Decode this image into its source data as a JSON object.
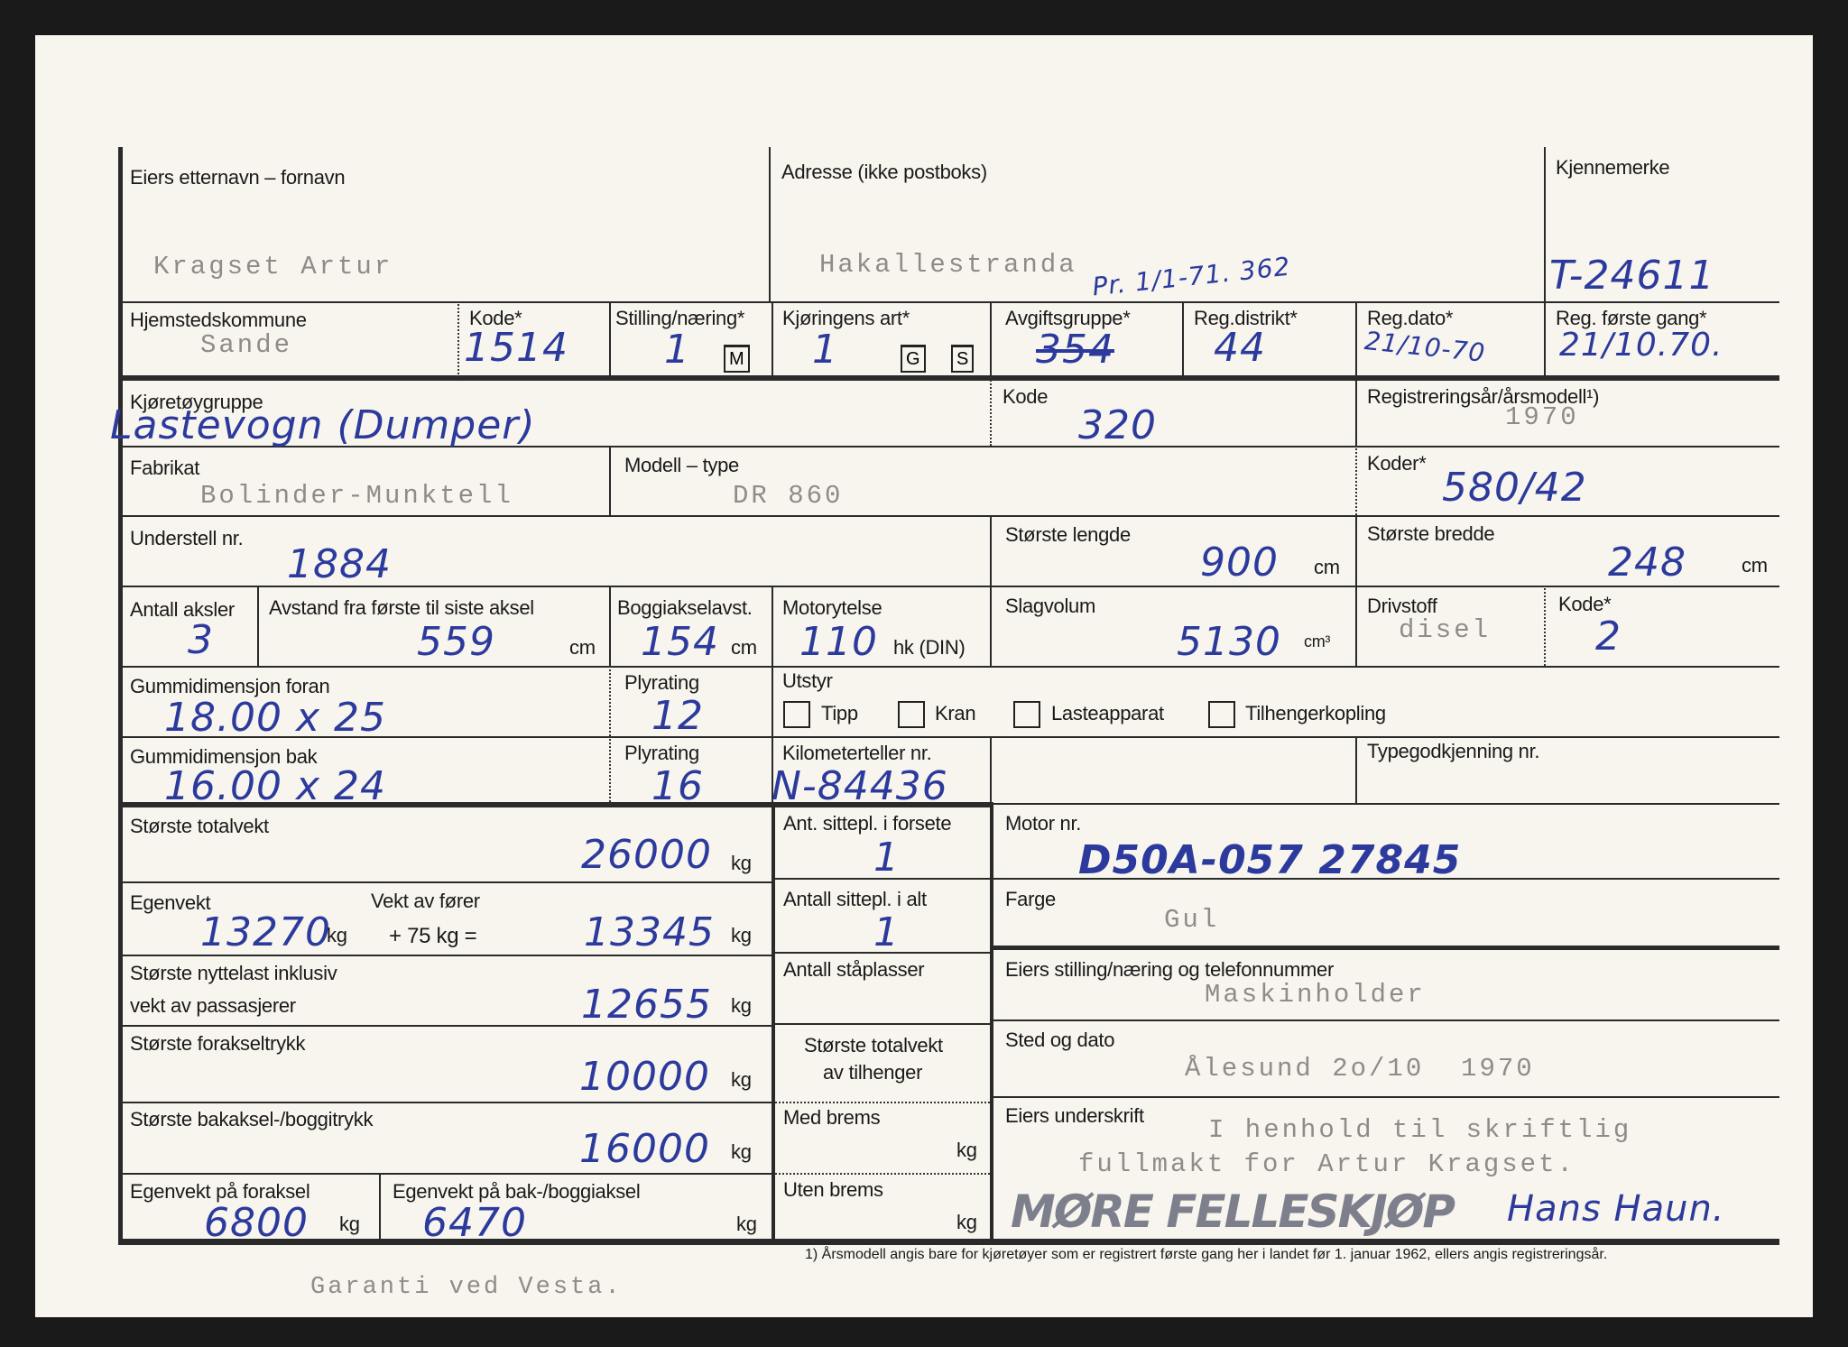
{
  "row1": {
    "owner_label": "Eiers etternavn – fornavn",
    "owner_value": "Kragset Artur",
    "address_label": "Adresse (ikke postboks)",
    "address_value": "Hakallestranda",
    "address_note": "Pr. 1/1-71. 362",
    "plate_label": "Kjennemerke",
    "plate_value": "T-24611"
  },
  "row2": {
    "municipality_label": "Hjemstedskommune",
    "municipality_value": "Sande",
    "code_label": "Kode*",
    "code_value": "1514",
    "occupation_label": "Stilling/næring*",
    "occupation_value": "1",
    "occupation_box": "M",
    "driving_label": "Kjøringens art*",
    "driving_value": "1",
    "driving_box_g": "G",
    "driving_box_s": "S",
    "fee_label": "Avgiftsgruppe*",
    "fee_value": "354",
    "district_label": "Reg.distrikt*",
    "district_value": "44",
    "regdate_label": "Reg.dato*",
    "regdate_value": "21/10-70",
    "firstreg_label": "Reg. første gang*",
    "firstreg_value": "21/10.70."
  },
  "row3": {
    "group_label": "Kjøretøygruppe",
    "group_value": "Lastevogn (Dumper)",
    "code_label": "Kode",
    "code_value": "320",
    "year_label": "Registreringsår/årsmodell¹)",
    "year_value": "1970"
  },
  "row4": {
    "make_label": "Fabrikat",
    "make_value": "Bolinder-Munktell",
    "model_label": "Modell – type",
    "model_value": "DR 860",
    "codes_label": "Koder*",
    "codes_value": "580/42"
  },
  "row5": {
    "chassis_label": "Understell nr.",
    "chassis_value": "1884",
    "length_label": "Største lengde",
    "length_value": "900",
    "length_unit": "cm",
    "width_label": "Største bredde",
    "width_value": "248",
    "width_unit": "cm"
  },
  "row6": {
    "axles_label": "Antall aksler",
    "axles_value": "3",
    "axle_dist_label": "Avstand fra første til siste aksel",
    "axle_dist_value": "559",
    "axle_dist_unit": "cm",
    "bogie_label": "Boggiakselavst.",
    "bogie_value": "154",
    "bogie_unit": "cm",
    "power_label": "Motorytelse",
    "power_value": "110",
    "power_unit": "hk (DIN)",
    "displacement_label": "Slagvolum",
    "displacement_value": "5130",
    "displacement_unit": "cm³",
    "fuel_label": "Drivstoff",
    "fuel_value": "disel",
    "fuel_code_label": "Kode*",
    "fuel_code_value": "2"
  },
  "row7": {
    "tire_front_label": "Gummidimensjon foran",
    "tire_front_value": "18.00 x 25",
    "ply_label": "Plyrating",
    "ply_value": "12",
    "equipment_label": "Utstyr",
    "equipment": [
      {
        "label": "Tipp",
        "checked": false
      },
      {
        "label": "Kran",
        "checked": false
      },
      {
        "label": "Lasteapparat",
        "checked": false
      },
      {
        "label": "Tilhengerkopling",
        "checked": false
      }
    ]
  },
  "row8": {
    "tire_rear_label": "Gummidimensjon bak",
    "tire_rear_value": "16.00 x 24",
    "ply_label": "Plyrating",
    "ply_value": "16",
    "odometer_label": "Kilometerteller nr.",
    "odometer_value": "N-84436",
    "type_approval_label": "Typegodkjenning nr."
  },
  "weights": {
    "total_label": "Største totalvekt",
    "total_value": "26000",
    "curb_label": "Egenvekt",
    "curb_value": "13270",
    "driver_label": "Vekt av fører",
    "driver_formula": "+ 75 kg =",
    "curb_driver_value": "13345",
    "payload_label_1": "Største nyttelast inklusiv",
    "payload_label_2": "vekt av passasjerer",
    "payload_value": "12655",
    "front_axle_label": "Største forakseltrykk",
    "front_axle_value": "10000",
    "rear_axle_label": "Største bakaksel-/boggitrykk",
    "rear_axle_value": "16000",
    "curb_front_label": "Egenvekt på foraksel",
    "curb_front_value": "6800",
    "curb_rear_label": "Egenvekt på bak-/boggiaksel",
    "curb_rear_value": "6470",
    "unit": "kg"
  },
  "seats": {
    "front_label": "Ant. sittepl. i forsete",
    "front_value": "1",
    "total_label": "Antall sittepl. i alt",
    "total_value": "1",
    "standing_label": "Antall ståplasser",
    "trailer_label_1": "Største totalvekt",
    "trailer_label_2": "av tilhenger",
    "braked_label": "Med brems",
    "unbraked_label": "Uten brems",
    "unit": "kg"
  },
  "owner": {
    "engine_label": "Motor nr.",
    "engine_value": "D50A-057  27845",
    "color_label": "Farge",
    "color_value": "Gul",
    "occupation_label": "Eiers stilling/næring og telefonnummer",
    "occupation_value": "Maskinholder",
    "place_label": "Sted og dato",
    "place_value": "Ålesund 2o/10  1970",
    "signature_label": "Eiers underskrift",
    "signature_line_1": "I henhold til skriftlig",
    "signature_line_2": "fullmakt for Artur Kragset.",
    "stamp": "MØRE FELLESKJØP",
    "signature": "Hans Haun."
  },
  "footnote": "1) Årsmodell angis bare for kjøretøyer som er registrert første gang her i landet før 1. januar 1962, ellers angis registreringsår.",
  "bottom_note": "Garanti ved Vesta.",
  "colors": {
    "ink_blue": "#2b3a9c",
    "typewriter_gray": "#8f8c88",
    "paper": "#f7f5ee"
  }
}
